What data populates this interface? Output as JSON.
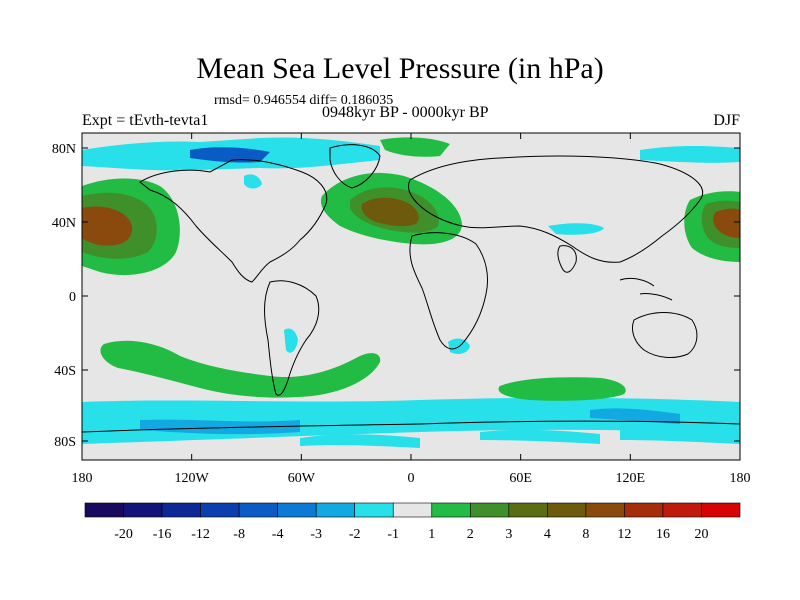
{
  "title": "Mean Sea Level Pressure (in hPa)",
  "stats_line": "rmsd= 0.946554 diff= 0.186035",
  "period_line": "0948kyr BP - 0000kyr BP",
  "experiment": "Expt = tEvth-tevta1",
  "season": "DJF",
  "lat_labels": [
    "80N",
    "40N",
    "0",
    "40S",
    "80S"
  ],
  "lat_values": [
    80,
    40,
    0,
    -40,
    -80
  ],
  "lon_labels": [
    "180",
    "120W",
    "60W",
    "0",
    "60E",
    "120E",
    "180"
  ],
  "lon_values": [
    -180,
    -120,
    -60,
    0,
    60,
    120,
    180
  ],
  "colorbar": {
    "labels": [
      "-20",
      "-16",
      "-12",
      "-8",
      "-4",
      "-3",
      "-2",
      "-1",
      "1",
      "2",
      "3",
      "4",
      "8",
      "12",
      "16",
      "20"
    ],
    "colors": [
      "#1a0a5e",
      "#14137a",
      "#0b2896",
      "#0c3fae",
      "#0a5cc4",
      "#0b7ad4",
      "#12a8e2",
      "#27e0ea",
      "#e6e6e6",
      "#22bb44",
      "#3f8f2a",
      "#5a6d12",
      "#6e5a0c",
      "#8a4a0e",
      "#a52e0a",
      "#c01a0a",
      "#d60404"
    ]
  },
  "colors": {
    "background_field": "#e6e6e6",
    "coast": "#000000"
  }
}
